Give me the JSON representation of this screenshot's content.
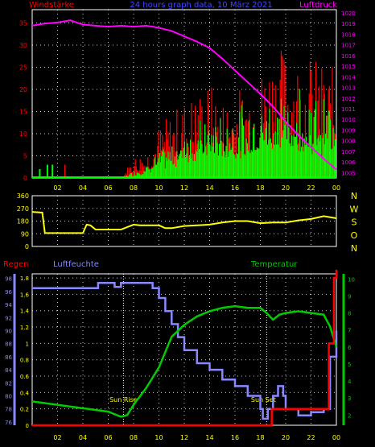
{
  "header": {
    "left_label": "Windstärke",
    "title": "24 hours graph data, 10 März 2021",
    "right_label": "Luftdruck"
  },
  "colors": {
    "wind_bar": "#00ff00",
    "wind_gust": "#ff0000",
    "pressure": "#ff00ff",
    "direction": "#ffff00",
    "temperature": "#00cc00",
    "humidity": "#8888ff",
    "rain": "#ff0000",
    "time_axis": "#ffff00",
    "wind_axis": "#ff0000",
    "pressure_axis": "#ff00ff",
    "humidity_axis": "#8888ff",
    "temp_axis": "#00cc00",
    "rain_axis": "#ffff00",
    "compass": "#ffff00",
    "grid": "#ffffff"
  },
  "chart_data": [
    {
      "type": "bar",
      "title": "24 hours graph data, 10 März 2021",
      "x_ticks": [
        "02",
        "04",
        "06",
        "08",
        "10",
        "12",
        "14",
        "16",
        "18",
        "20",
        "22",
        "00"
      ],
      "y_left_label": "Windstärke",
      "y_left_ticks": [
        "35",
        "30",
        "25",
        "20",
        "15",
        "10",
        "5",
        "0"
      ],
      "ylim_left": [
        0,
        38
      ],
      "y_right_label": "Luftdruck",
      "y_right_ticks": [
        "1020",
        "1019",
        "1018",
        "1017",
        "1016",
        "1015",
        "1014",
        "1013",
        "1012",
        "1011",
        "1010",
        "1009",
        "1008",
        "1007",
        "1006",
        "1005"
      ],
      "ylim_right": [
        1004.5,
        1020.3
      ],
      "hours": [
        0,
        1,
        2,
        3,
        4,
        5,
        6,
        7,
        8,
        9,
        10,
        11,
        12,
        13,
        14,
        15,
        16,
        17,
        18,
        19,
        20,
        21,
        22,
        23,
        24
      ],
      "wind_avg": [
        0,
        0,
        0,
        0,
        0,
        0,
        0,
        0,
        1,
        2,
        4,
        5,
        8,
        9,
        9,
        10,
        11,
        11,
        12,
        14,
        14,
        15,
        13,
        12,
        13
      ],
      "wind_gust": [
        3,
        2,
        0,
        0,
        0,
        0,
        0,
        0,
        5,
        6,
        12,
        15,
        18,
        20,
        22,
        18,
        20,
        22,
        25,
        30,
        30,
        28,
        28,
        26,
        25
      ],
      "pressure": [
        1018.8,
        1019.0,
        1019.1,
        1019.3,
        1018.9,
        1018.8,
        1018.7,
        1018.8,
        1018.7,
        1018.8,
        1018.6,
        1018.3,
        1017.8,
        1017.3,
        1016.7,
        1015.7,
        1014.6,
        1013.5,
        1012.4,
        1011.2,
        1009.8,
        1008.5,
        1007.4,
        1006.3,
        1005.3
      ]
    },
    {
      "type": "line",
      "y_ticks": [
        "360",
        "270",
        "180",
        "90",
        "0"
      ],
      "ylim": [
        0,
        360
      ],
      "compass_labels": [
        "N",
        "W",
        "S",
        "O",
        "N"
      ],
      "hours": [
        0,
        0.8,
        1,
        4,
        4.3,
        4.6,
        5,
        7,
        8,
        8.5,
        9,
        10,
        10.5,
        11,
        12,
        13,
        14,
        15,
        16,
        17,
        18,
        19,
        20,
        21,
        22,
        23,
        24
      ],
      "direction": [
        245,
        240,
        95,
        95,
        155,
        150,
        120,
        120,
        155,
        150,
        150,
        150,
        130,
        130,
        145,
        150,
        155,
        170,
        180,
        180,
        165,
        170,
        170,
        185,
        195,
        215,
        200
      ]
    },
    {
      "type": "line",
      "left_label": "Regen",
      "mid_label": "Luftfeuchte",
      "right_label": "Temperatur",
      "rain_ticks": [
        "1.8",
        "1.6",
        "1.4",
        "1.2",
        "1",
        "0.8",
        "0.6",
        "0.4",
        "0.2",
        "0"
      ],
      "ylim_rain": [
        0,
        1.85
      ],
      "humidity_ticks": [
        "98",
        "96",
        "94",
        "92",
        "90",
        "88",
        "86",
        "84",
        "82",
        "80",
        "78",
        "76"
      ],
      "ylim_humidity": [
        75.5,
        98.7
      ],
      "temp_ticks": [
        "10",
        "9",
        "8",
        "7",
        "6",
        "5",
        "4",
        "3",
        "2"
      ],
      "ylim_temp": [
        1.4,
        10.3
      ],
      "annotations": [
        "Sun Rise",
        "Sun Set"
      ],
      "sunrise_hour": 7.2,
      "sunset_hour": 18.5,
      "humidity_hours": [
        0,
        5,
        5.2,
        6,
        6.5,
        7,
        8,
        9,
        9.5,
        10,
        10.5,
        11,
        11.5,
        12,
        13,
        14,
        15,
        16,
        17,
        18,
        18.2,
        18.6,
        19,
        19.4,
        19.8,
        20,
        21,
        22,
        23,
        23.5,
        24
      ],
      "humidity": [
        96.5,
        96.5,
        97.3,
        97.3,
        96.7,
        97.3,
        97.3,
        97.3,
        96.5,
        95,
        93,
        91,
        89,
        87,
        85,
        84,
        82.5,
        81.5,
        80,
        78,
        76.5,
        78,
        80,
        81.5,
        80,
        78,
        77,
        77.5,
        78,
        86,
        90
      ],
      "temperature_hours": [
        0,
        2,
        4,
        6,
        7,
        7.5,
        8,
        9,
        10,
        11,
        12,
        13,
        14,
        15,
        16,
        17,
        18,
        18.5,
        19,
        19.5,
        20,
        21,
        22,
        23,
        23.5,
        24
      ],
      "temperature": [
        2.8,
        2.6,
        2.4,
        2.2,
        1.9,
        2.0,
        2.6,
        3.6,
        4.8,
        6.6,
        7.3,
        7.8,
        8.1,
        8.3,
        8.4,
        8.3,
        8.3,
        8.0,
        7.6,
        7.9,
        8.0,
        8.1,
        8.0,
        7.9,
        7.2,
        6.0
      ],
      "rain_hours": [
        0,
        18.8,
        18.9,
        23.3,
        23.4,
        23.8,
        24
      ],
      "rain": [
        0,
        0,
        0.2,
        0.2,
        1.0,
        1.8,
        1.9
      ]
    }
  ]
}
